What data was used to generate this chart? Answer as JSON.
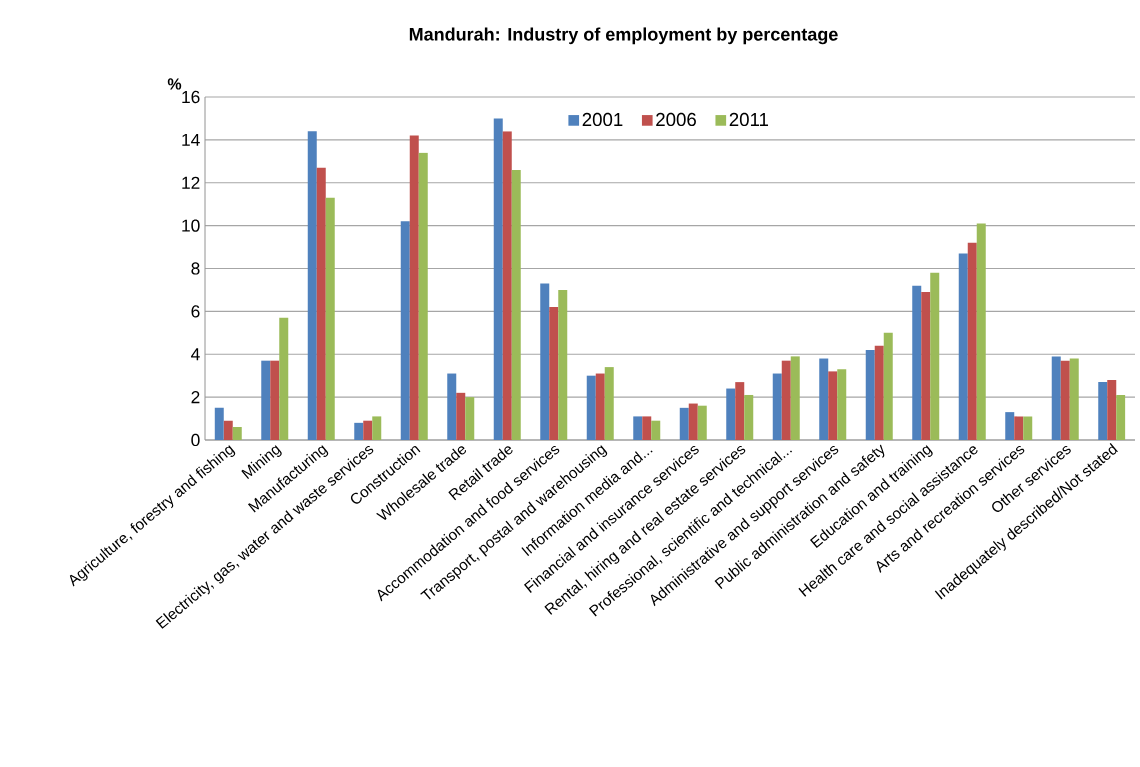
{
  "chart_data": {
    "type": "bar",
    "title": "Mandurah: Industry of employment by percentage",
    "ylabel": "%",
    "categories": [
      "Agriculture, forestry and fishing",
      "Mining",
      "Manufacturing",
      "Electricity, gas, water and waste services",
      "Construction",
      "Wholesale trade",
      "Retail trade",
      "Accommodation and food services",
      "Transport, postal and warehousing",
      "Information media and...",
      "Financial and insurance services",
      "Rental, hiring and real estate services",
      "Professional, scientific and technical...",
      "Administrative and support services",
      "Public administration and safety",
      "Education and training",
      "Health care and social assistance",
      "Arts and recreation services",
      "Other services",
      "Inadequately described/Not stated"
    ],
    "series": [
      {
        "name": "2001",
        "color": "#4f81bd",
        "values": [
          1.5,
          3.7,
          14.4,
          0.8,
          10.2,
          3.1,
          15.0,
          7.3,
          3.0,
          1.1,
          1.5,
          2.4,
          3.1,
          3.8,
          4.2,
          7.2,
          8.7,
          1.3,
          3.9,
          2.7
        ]
      },
      {
        "name": "2006",
        "color": "#c0504d",
        "values": [
          0.9,
          3.7,
          12.7,
          0.9,
          14.2,
          2.2,
          14.4,
          6.2,
          3.1,
          1.1,
          1.7,
          2.7,
          3.7,
          3.2,
          4.4,
          6.9,
          9.2,
          1.1,
          3.7,
          2.8
        ]
      },
      {
        "name": "2011",
        "color": "#9bbb59",
        "values": [
          0.6,
          5.7,
          11.3,
          1.1,
          13.4,
          2.0,
          12.6,
          7.0,
          3.4,
          0.9,
          1.6,
          2.1,
          3.9,
          3.3,
          5.0,
          7.8,
          10.1,
          1.1,
          3.8,
          2.1
        ]
      }
    ],
    "ylim": [
      0,
      16
    ],
    "yticks": [
      0,
      2,
      4,
      6,
      8,
      10,
      12,
      14,
      16
    ],
    "grid": "y",
    "legend": "top"
  }
}
